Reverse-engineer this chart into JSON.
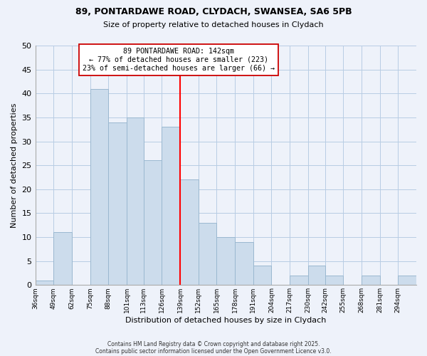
{
  "title1": "89, PONTARDAWE ROAD, CLYDACH, SWANSEA, SA6 5PB",
  "title2": "Size of property relative to detached houses in Clydach",
  "xlabel": "Distribution of detached houses by size in Clydach",
  "ylabel": "Number of detached properties",
  "bin_labels": [
    "36sqm",
    "49sqm",
    "62sqm",
    "75sqm",
    "88sqm",
    "101sqm",
    "113sqm",
    "126sqm",
    "139sqm",
    "152sqm",
    "165sqm",
    "178sqm",
    "191sqm",
    "204sqm",
    "217sqm",
    "230sqm",
    "242sqm",
    "255sqm",
    "268sqm",
    "281sqm",
    "294sqm"
  ],
  "bin_edges": [
    36,
    49,
    62,
    75,
    88,
    101,
    113,
    126,
    139,
    152,
    165,
    178,
    191,
    204,
    217,
    230,
    242,
    255,
    268,
    281,
    294,
    307
  ],
  "counts": [
    1,
    11,
    0,
    41,
    34,
    35,
    26,
    33,
    22,
    13,
    10,
    9,
    4,
    0,
    2,
    4,
    2,
    0,
    2,
    0,
    2
  ],
  "bar_color": "#ccdcec",
  "bar_edge_color": "#9ab8d0",
  "grid_color": "#b8cce4",
  "property_line_x": 139,
  "property_line_color": "red",
  "annotation_line1": "89 PONTARDAWE ROAD: 142sqm",
  "annotation_line2": "← 77% of detached houses are smaller (223)",
  "annotation_line3": "23% of semi-detached houses are larger (66) →",
  "annotation_box_color": "white",
  "annotation_box_edge_color": "#cc0000",
  "ylim": [
    0,
    50
  ],
  "yticks": [
    0,
    5,
    10,
    15,
    20,
    25,
    30,
    35,
    40,
    45,
    50
  ],
  "footnote1": "Contains HM Land Registry data © Crown copyright and database right 2025.",
  "footnote2": "Contains public sector information licensed under the Open Government Licence v3.0.",
  "background_color": "#eef2fa"
}
